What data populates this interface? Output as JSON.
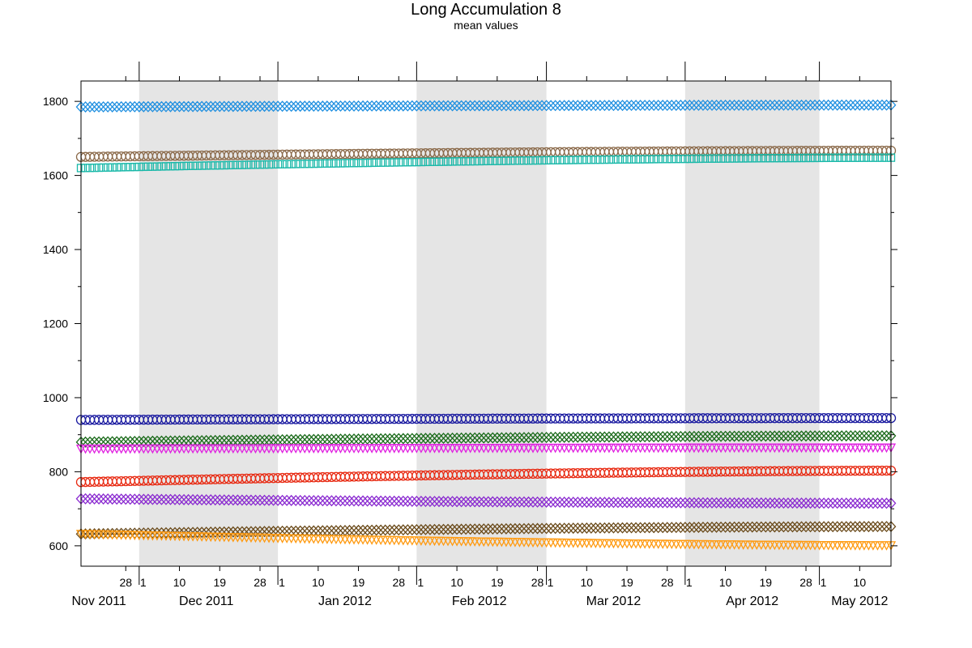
{
  "chart_data": {
    "type": "line",
    "title": "Long Accumulation 8",
    "subtitle": "mean values",
    "xlabel": "",
    "ylabel": "",
    "x_range": [
      "2011-11-18",
      "2012-05-17"
    ],
    "ylim": [
      545,
      1855
    ],
    "y_ticks": [
      600,
      800,
      1000,
      1200,
      1400,
      1600,
      1800
    ],
    "grid": false,
    "legend": "none",
    "month_bands": [
      {
        "start": "2011-12-01",
        "end": "2012-01-01"
      },
      {
        "start": "2012-02-01",
        "end": "2012-03-01"
      },
      {
        "start": "2012-04-01",
        "end": "2012-05-01"
      }
    ],
    "month_labels": [
      {
        "label": "Nov 2011",
        "date": "2011-11-22"
      },
      {
        "label": "Dec 2011",
        "date": "2011-12-16"
      },
      {
        "label": "Jan 2012",
        "date": "2012-01-16"
      },
      {
        "label": "Feb 2012",
        "date": "2012-02-15"
      },
      {
        "label": "Mar 2012",
        "date": "2012-03-16"
      },
      {
        "label": "Apr 2012",
        "date": "2012-04-16"
      },
      {
        "label": "May 2012",
        "date": "2012-05-10"
      }
    ],
    "day_ticks": [
      {
        "label": "28",
        "date": "2011-11-28"
      },
      {
        "label": "1",
        "date": "2011-12-01"
      },
      {
        "label": "10",
        "date": "2011-12-10"
      },
      {
        "label": "19",
        "date": "2011-12-19"
      },
      {
        "label": "28",
        "date": "2011-12-28"
      },
      {
        "label": "1",
        "date": "2012-01-01"
      },
      {
        "label": "10",
        "date": "2012-01-10"
      },
      {
        "label": "19",
        "date": "2012-01-19"
      },
      {
        "label": "28",
        "date": "2012-01-28"
      },
      {
        "label": "1",
        "date": "2012-02-01"
      },
      {
        "label": "10",
        "date": "2012-02-10"
      },
      {
        "label": "19",
        "date": "2012-02-19"
      },
      {
        "label": "28",
        "date": "2012-02-28"
      },
      {
        "label": "1",
        "date": "2012-03-01"
      },
      {
        "label": "10",
        "date": "2012-03-10"
      },
      {
        "label": "19",
        "date": "2012-03-19"
      },
      {
        "label": "28",
        "date": "2012-03-28"
      },
      {
        "label": "1",
        "date": "2012-04-01"
      },
      {
        "label": "10",
        "date": "2012-04-10"
      },
      {
        "label": "19",
        "date": "2012-04-19"
      },
      {
        "label": "28",
        "date": "2012-04-28"
      },
      {
        "label": "1",
        "date": "2012-05-01"
      },
      {
        "label": "10",
        "date": "2012-05-10"
      }
    ],
    "series": [
      {
        "color": "#1f8fe0",
        "marker": "diamond",
        "start": 1785,
        "end": 1790
      },
      {
        "color": "#8b6a4a",
        "marker": "circle",
        "start": 1650,
        "end": 1667
      },
      {
        "color": "#18b8a8",
        "marker": "square",
        "start": 1620,
        "end": 1648
      },
      {
        "color": "#1a1aa0",
        "marker": "circle",
        "start": 940,
        "end": 945
      },
      {
        "color": "#1a6a1a",
        "marker": "diamond",
        "start": 880,
        "end": 897
      },
      {
        "color": "#e020e0",
        "marker": "triangle",
        "start": 862,
        "end": 865
      },
      {
        "color": "#e82a12",
        "marker": "circle",
        "start": 772,
        "end": 803
      },
      {
        "color": "#8a2ad0",
        "marker": "diamond",
        "start": 727,
        "end": 715
      },
      {
        "color": "#6a4a1a",
        "marker": "diamond",
        "start": 632,
        "end": 652
      },
      {
        "color": "#ff9a10",
        "marker": "triangle",
        "start": 632,
        "end": 601
      }
    ]
  }
}
